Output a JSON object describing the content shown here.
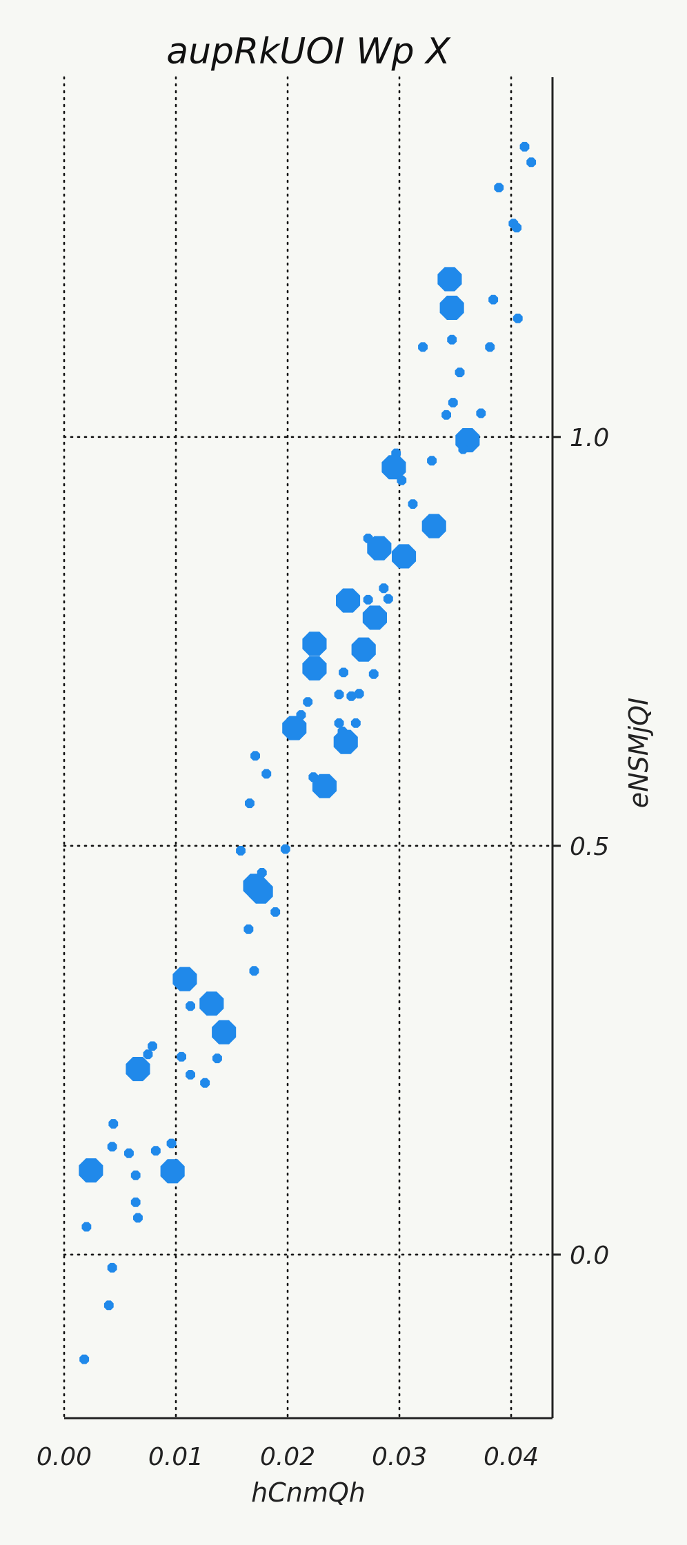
{
  "chart_data": {
    "type": "scatter",
    "title": "aupRkUOI Wp X",
    "xlabel": "hCnmQh",
    "ylabel": "eNSMjQI",
    "xlim": [
      0.0,
      0.0437
    ],
    "ylim": [
      -0.2,
      1.44
    ],
    "x_ticks": [
      "0.00",
      "0.01",
      "0.02",
      "0.03",
      "0.04"
    ],
    "x_tick_values": [
      0.0,
      0.01,
      0.02,
      0.03,
      0.04
    ],
    "y_ticks": [
      "0.0",
      "0.5",
      "1.0"
    ],
    "y_tick_values": [
      0.0,
      0.5,
      1.0
    ],
    "y_axis_position": "right",
    "grid": true,
    "legend": "none",
    "marker_color": "#2089ea",
    "marker_shape": "octagon",
    "points": [
      {
        "x": 0.0412,
        "y": 1.355,
        "size": "small"
      },
      {
        "x": 0.0418,
        "y": 1.336,
        "size": "small"
      },
      {
        "x": 0.0389,
        "y": 1.305,
        "size": "small"
      },
      {
        "x": 0.0402,
        "y": 1.261,
        "size": "small"
      },
      {
        "x": 0.0405,
        "y": 1.256,
        "size": "small"
      },
      {
        "x": 0.0345,
        "y": 1.193,
        "size": "large"
      },
      {
        "x": 0.0384,
        "y": 1.168,
        "size": "small"
      },
      {
        "x": 0.0347,
        "y": 1.158,
        "size": "large"
      },
      {
        "x": 0.0406,
        "y": 1.145,
        "size": "small"
      },
      {
        "x": 0.0347,
        "y": 1.119,
        "size": "small"
      },
      {
        "x": 0.0321,
        "y": 1.11,
        "size": "small"
      },
      {
        "x": 0.0381,
        "y": 1.11,
        "size": "small"
      },
      {
        "x": 0.0354,
        "y": 1.079,
        "size": "small"
      },
      {
        "x": 0.0348,
        "y": 1.042,
        "size": "small"
      },
      {
        "x": 0.0342,
        "y": 1.027,
        "size": "small"
      },
      {
        "x": 0.0373,
        "y": 1.029,
        "size": "small"
      },
      {
        "x": 0.0361,
        "y": 0.996,
        "size": "large"
      },
      {
        "x": 0.0357,
        "y": 0.985,
        "size": "small"
      },
      {
        "x": 0.0297,
        "y": 0.98,
        "size": "small"
      },
      {
        "x": 0.0329,
        "y": 0.971,
        "size": "small"
      },
      {
        "x": 0.0295,
        "y": 0.963,
        "size": "large"
      },
      {
        "x": 0.0302,
        "y": 0.947,
        "size": "small"
      },
      {
        "x": 0.0312,
        "y": 0.918,
        "size": "small"
      },
      {
        "x": 0.0331,
        "y": 0.891,
        "size": "large"
      },
      {
        "x": 0.0272,
        "y": 0.876,
        "size": "small"
      },
      {
        "x": 0.0282,
        "y": 0.864,
        "size": "large"
      },
      {
        "x": 0.0304,
        "y": 0.854,
        "size": "large"
      },
      {
        "x": 0.0286,
        "y": 0.815,
        "size": "small"
      },
      {
        "x": 0.0254,
        "y": 0.8,
        "size": "large"
      },
      {
        "x": 0.0272,
        "y": 0.801,
        "size": "small"
      },
      {
        "x": 0.029,
        "y": 0.802,
        "size": "small"
      },
      {
        "x": 0.028,
        "y": 0.786,
        "size": "small"
      },
      {
        "x": 0.0278,
        "y": 0.779,
        "size": "large"
      },
      {
        "x": 0.0224,
        "y": 0.747,
        "size": "large"
      },
      {
        "x": 0.0268,
        "y": 0.74,
        "size": "large"
      },
      {
        "x": 0.0224,
        "y": 0.717,
        "size": "large"
      },
      {
        "x": 0.025,
        "y": 0.712,
        "size": "small"
      },
      {
        "x": 0.0277,
        "y": 0.71,
        "size": "small"
      },
      {
        "x": 0.0246,
        "y": 0.685,
        "size": "small"
      },
      {
        "x": 0.0257,
        "y": 0.683,
        "size": "small"
      },
      {
        "x": 0.0264,
        "y": 0.686,
        "size": "small"
      },
      {
        "x": 0.0218,
        "y": 0.676,
        "size": "small"
      },
      {
        "x": 0.0212,
        "y": 0.66,
        "size": "small"
      },
      {
        "x": 0.0246,
        "y": 0.65,
        "size": "small"
      },
      {
        "x": 0.0261,
        "y": 0.65,
        "size": "small"
      },
      {
        "x": 0.0206,
        "y": 0.644,
        "size": "large"
      },
      {
        "x": 0.0249,
        "y": 0.64,
        "size": "small"
      },
      {
        "x": 0.0252,
        "y": 0.627,
        "size": "large"
      },
      {
        "x": 0.0171,
        "y": 0.61,
        "size": "small"
      },
      {
        "x": 0.0181,
        "y": 0.588,
        "size": "small"
      },
      {
        "x": 0.0223,
        "y": 0.584,
        "size": "small"
      },
      {
        "x": 0.0233,
        "y": 0.573,
        "size": "large"
      },
      {
        "x": 0.0166,
        "y": 0.552,
        "size": "small"
      },
      {
        "x": 0.0158,
        "y": 0.494,
        "size": "small"
      },
      {
        "x": 0.0198,
        "y": 0.496,
        "size": "small"
      },
      {
        "x": 0.0177,
        "y": 0.467,
        "size": "small"
      },
      {
        "x": 0.0171,
        "y": 0.451,
        "size": "large"
      },
      {
        "x": 0.0176,
        "y": 0.444,
        "size": "large"
      },
      {
        "x": 0.0189,
        "y": 0.419,
        "size": "small"
      },
      {
        "x": 0.0165,
        "y": 0.398,
        "size": "small"
      },
      {
        "x": 0.017,
        "y": 0.347,
        "size": "small"
      },
      {
        "x": 0.0108,
        "y": 0.337,
        "size": "large"
      },
      {
        "x": 0.0132,
        "y": 0.307,
        "size": "large"
      },
      {
        "x": 0.0113,
        "y": 0.304,
        "size": "small"
      },
      {
        "x": 0.0143,
        "y": 0.272,
        "size": "large"
      },
      {
        "x": 0.0079,
        "y": 0.255,
        "size": "small"
      },
      {
        "x": 0.0075,
        "y": 0.245,
        "size": "small"
      },
      {
        "x": 0.0105,
        "y": 0.242,
        "size": "small"
      },
      {
        "x": 0.0137,
        "y": 0.24,
        "size": "small"
      },
      {
        "x": 0.0066,
        "y": 0.227,
        "size": "large"
      },
      {
        "x": 0.0113,
        "y": 0.22,
        "size": "small"
      },
      {
        "x": 0.0126,
        "y": 0.21,
        "size": "small"
      },
      {
        "x": 0.0044,
        "y": 0.16,
        "size": "small"
      },
      {
        "x": 0.0096,
        "y": 0.136,
        "size": "small"
      },
      {
        "x": 0.0043,
        "y": 0.132,
        "size": "small"
      },
      {
        "x": 0.0082,
        "y": 0.127,
        "size": "small"
      },
      {
        "x": 0.0058,
        "y": 0.124,
        "size": "small"
      },
      {
        "x": 0.0024,
        "y": 0.103,
        "size": "large"
      },
      {
        "x": 0.0097,
        "y": 0.102,
        "size": "large"
      },
      {
        "x": 0.0064,
        "y": 0.097,
        "size": "small"
      },
      {
        "x": 0.0064,
        "y": 0.064,
        "size": "small"
      },
      {
        "x": 0.0066,
        "y": 0.045,
        "size": "small"
      },
      {
        "x": 0.002,
        "y": 0.034,
        "size": "small"
      },
      {
        "x": 0.0043,
        "y": -0.016,
        "size": "small"
      },
      {
        "x": 0.004,
        "y": -0.062,
        "size": "small"
      },
      {
        "x": 0.0018,
        "y": -0.128,
        "size": "small"
      }
    ]
  }
}
